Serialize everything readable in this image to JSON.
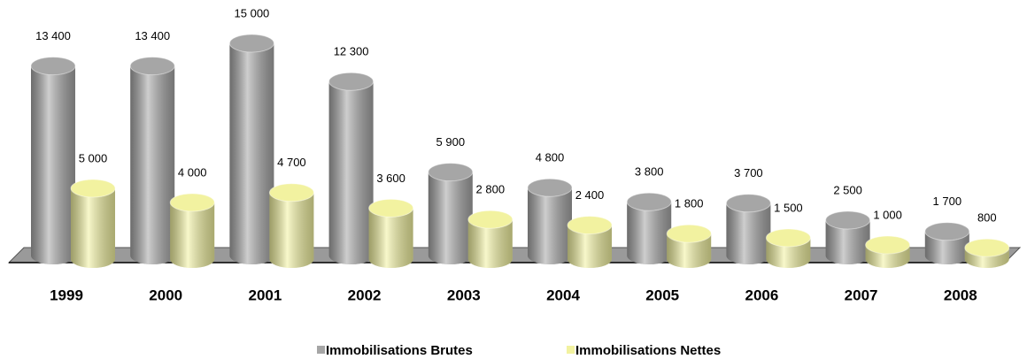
{
  "chart_data": {
    "type": "bar",
    "categories": [
      "1999",
      "2000",
      "2001",
      "2002",
      "2003",
      "2004",
      "2005",
      "2006",
      "2007",
      "2008"
    ],
    "series": [
      {
        "name": "Immobilisations Brutes",
        "color": "#a6a6a6",
        "values": [
          13400,
          13400,
          15000,
          12300,
          5900,
          4800,
          3800,
          3700,
          2500,
          1700
        ],
        "value_labels": [
          "13 400",
          "13 400",
          "15 000",
          "12 300",
          "5 900",
          "4 800",
          "3 800",
          "3 700",
          "2 500",
          "1 700"
        ]
      },
      {
        "name": "Immobilisations Nettes",
        "color": "#f2f2a0",
        "values": [
          5000,
          4000,
          4700,
          3600,
          2800,
          2400,
          1800,
          1500,
          1000,
          800
        ],
        "value_labels": [
          "5 000",
          "4 000",
          "4 700",
          "3 600",
          "2 800",
          "2 400",
          "1 800",
          "1 500",
          "1 000",
          "800"
        ]
      }
    ],
    "ylim": [
      0,
      16000
    ],
    "legend": "bottom"
  }
}
